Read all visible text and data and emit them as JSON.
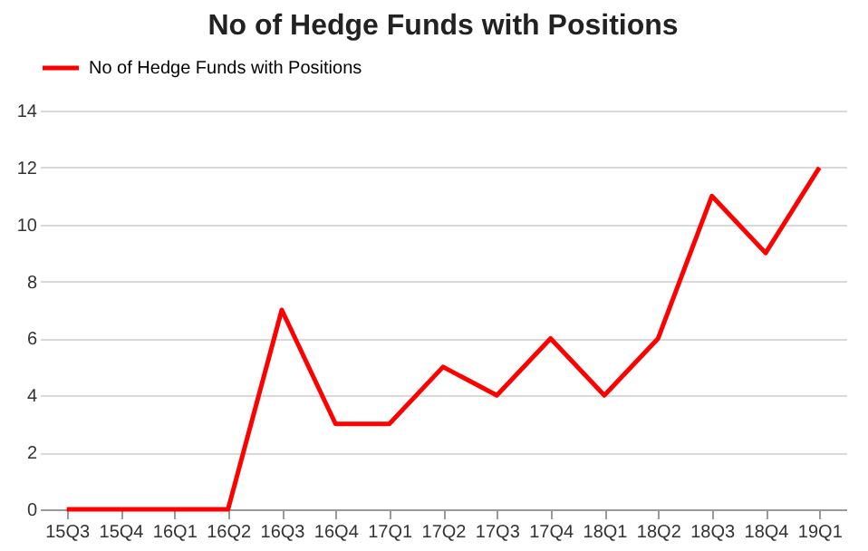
{
  "chart_data": {
    "type": "line",
    "title": "No of Hedge Funds with Positions",
    "categories": [
      "15Q3",
      "15Q4",
      "16Q1",
      "16Q2",
      "16Q3",
      "16Q4",
      "17Q1",
      "17Q2",
      "17Q3",
      "17Q4",
      "18Q1",
      "18Q2",
      "18Q3",
      "18Q4",
      "19Q1"
    ],
    "series": [
      {
        "name": "No of Hedge Funds with Positions",
        "color": "#ff0000",
        "values": [
          0,
          0,
          0,
          0,
          7,
          3,
          3,
          5,
          4,
          6,
          4,
          6,
          11,
          9,
          12
        ]
      }
    ],
    "ylim": [
      0,
      14
    ],
    "yticks": [
      0,
      2,
      4,
      6,
      8,
      10,
      12,
      14
    ],
    "grid": "y",
    "legend": "top",
    "marker": "none",
    "line_style": "solid"
  }
}
